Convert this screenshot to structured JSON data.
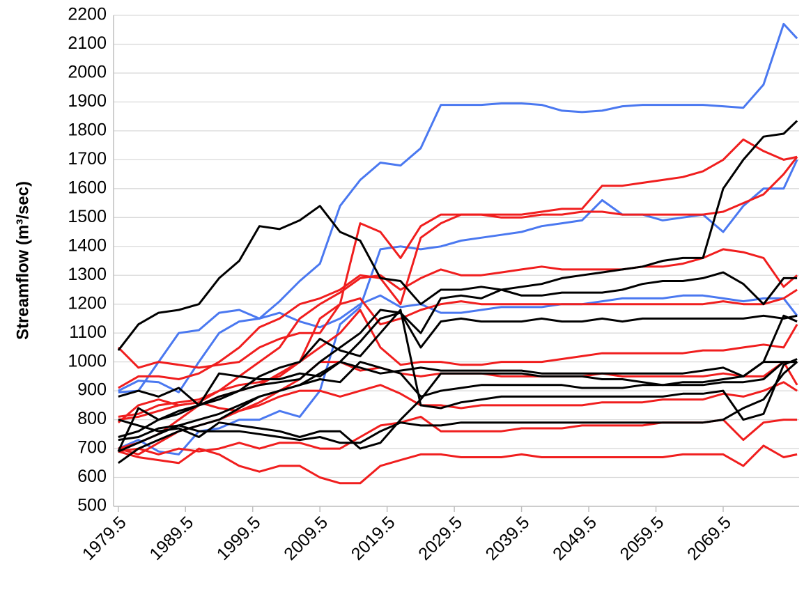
{
  "chart_data": {
    "type": "line",
    "y_label": "Streamflow (m³/sec)",
    "x": [
      1979.5,
      1982.5,
      1985.5,
      1988.5,
      1991.5,
      1994.5,
      1997.5,
      2000.5,
      2003.5,
      2006.5,
      2009.5,
      2012.5,
      2015.5,
      2018.5,
      2021.5,
      2024.5,
      2027.5,
      2030.5,
      2033.5,
      2036.5,
      2039.5,
      2042.5,
      2045.5,
      2048.5,
      2051.5,
      2054.5,
      2057.5,
      2060.5,
      2063.5,
      2066.5,
      2069.5,
      2072.5,
      2075.5,
      2078.5,
      2080.5
    ],
    "xlim": [
      1978.8,
      2080.8
    ],
    "xticks": [
      1979.5,
      1989.5,
      1999.5,
      2009.5,
      2019.5,
      2029.5,
      2039.5,
      2049.5,
      2059.5,
      2069.5
    ],
    "ylim": [
      500,
      2200
    ],
    "yticks": [
      500,
      600,
      700,
      800,
      900,
      1000,
      1100,
      1200,
      1300,
      1400,
      1500,
      1600,
      1700,
      1800,
      1900,
      2000,
      2100,
      2200
    ],
    "grid": true,
    "series": [
      {
        "color": "#4a78f0",
        "values": [
          900,
          935,
          930,
          895,
          1000,
          1100,
          1140,
          1150,
          1210,
          1280,
          1340,
          1540,
          1630,
          1690,
          1680,
          1740,
          1890,
          1890,
          1890,
          1895,
          1895,
          1890,
          1870,
          1865,
          1870,
          1885,
          1890,
          1890,
          1890,
          1890,
          1885,
          1880,
          1960,
          2170,
          2120
        ]
      },
      {
        "color": "#4a78f0",
        "values": [
          895,
          900,
          1000,
          1100,
          1110,
          1170,
          1180,
          1150,
          1170,
          1140,
          1120,
          1150,
          1200,
          1230,
          1190,
          1200,
          1170,
          1170,
          1180,
          1190,
          1190,
          1190,
          1200,
          1200,
          1210,
          1220,
          1220,
          1220,
          1230,
          1230,
          1220,
          1210,
          1220,
          1220,
          1160
        ]
      },
      {
        "color": "#4a78f0",
        "values": [
          700,
          730,
          690,
          680,
          760,
          770,
          800,
          800,
          830,
          810,
          900,
          1130,
          1190,
          1390,
          1400,
          1390,
          1400,
          1420,
          1430,
          1440,
          1450,
          1470,
          1480,
          1490,
          1560,
          1510,
          1510,
          1490,
          1500,
          1510,
          1450,
          1540,
          1600,
          1600,
          1700
        ]
      },
      {
        "color": "#f01e1e",
        "values": [
          1050,
          980,
          1000,
          990,
          980,
          990,
          1000,
          1050,
          1080,
          1100,
          1100,
          1200,
          1480,
          1450,
          1360,
          1470,
          1510,
          1510,
          1510,
          1510,
          1510,
          1520,
          1530,
          1530,
          1610,
          1610,
          1620,
          1630,
          1640,
          1660,
          1700,
          1770,
          1730,
          1700,
          1710
        ]
      },
      {
        "color": "#f01e1e",
        "values": [
          910,
          950,
          950,
          940,
          960,
          1000,
          1050,
          1120,
          1150,
          1200,
          1220,
          1250,
          1300,
          1290,
          1200,
          1430,
          1480,
          1510,
          1510,
          1500,
          1500,
          1510,
          1510,
          1520,
          1520,
          1510,
          1510,
          1510,
          1510,
          1510,
          1520,
          1550,
          1580,
          1650,
          1710
        ]
      },
      {
        "color": "#f01e1e",
        "values": [
          810,
          820,
          850,
          860,
          870,
          900,
          950,
          1000,
          1050,
          1150,
          1200,
          1240,
          1290,
          1300,
          1250,
          1290,
          1320,
          1300,
          1300,
          1310,
          1320,
          1330,
          1320,
          1320,
          1320,
          1320,
          1330,
          1330,
          1340,
          1360,
          1390,
          1380,
          1360,
          1260,
          1300
        ]
      },
      {
        "color": "#f01e1e",
        "values": [
          790,
          850,
          870,
          850,
          860,
          900,
          920,
          930,
          950,
          1000,
          1150,
          1200,
          1220,
          1130,
          1150,
          1180,
          1200,
          1210,
          1200,
          1200,
          1200,
          1200,
          1200,
          1200,
          1200,
          1200,
          1200,
          1200,
          1200,
          1200,
          1210,
          1200,
          1200,
          1220,
          1250
        ]
      },
      {
        "color": "#f01e1e",
        "values": [
          700,
          720,
          750,
          800,
          850,
          880,
          900,
          920,
          960,
          1000,
          1050,
          1100,
          1180,
          1050,
          990,
          1000,
          1000,
          990,
          990,
          1000,
          1000,
          1000,
          1010,
          1020,
          1030,
          1030,
          1030,
          1030,
          1030,
          1040,
          1040,
          1050,
          1060,
          1050,
          1130
        ]
      },
      {
        "color": "#f01e1e",
        "values": [
          700,
          680,
          720,
          760,
          780,
          800,
          830,
          860,
          900,
          940,
          1000,
          1000,
          970,
          980,
          960,
          950,
          960,
          960,
          960,
          950,
          950,
          950,
          950,
          950,
          960,
          950,
          950,
          950,
          950,
          950,
          960,
          950,
          950,
          1000,
          920
        ]
      },
      {
        "color": "#f01e1e",
        "values": [
          800,
          810,
          830,
          850,
          860,
          840,
          830,
          850,
          880,
          900,
          900,
          880,
          900,
          920,
          890,
          850,
          850,
          840,
          850,
          850,
          850,
          850,
          850,
          850,
          860,
          860,
          860,
          870,
          870,
          870,
          890,
          880,
          900,
          930,
          900
        ]
      },
      {
        "color": "#f01e1e",
        "values": [
          690,
          700,
          680,
          700,
          690,
          700,
          720,
          700,
          720,
          720,
          700,
          700,
          740,
          780,
          790,
          810,
          760,
          760,
          760,
          760,
          770,
          770,
          770,
          780,
          780,
          780,
          780,
          790,
          790,
          790,
          800,
          730,
          790,
          800,
          800
        ]
      },
      {
        "color": "#f01e1e",
        "values": [
          690,
          670,
          660,
          650,
          700,
          680,
          640,
          620,
          640,
          640,
          600,
          580,
          580,
          640,
          660,
          680,
          680,
          670,
          670,
          670,
          680,
          670,
          670,
          670,
          670,
          670,
          670,
          670,
          680,
          680,
          680,
          640,
          710,
          670,
          680
        ]
      },
      {
        "color": "#000000",
        "values": [
          1040,
          1130,
          1170,
          1180,
          1200,
          1290,
          1350,
          1470,
          1460,
          1490,
          1540,
          1450,
          1420,
          1290,
          1280,
          1200,
          1250,
          1250,
          1260,
          1250,
          1260,
          1270,
          1290,
          1300,
          1310,
          1320,
          1330,
          1350,
          1360,
          1360,
          1600,
          1700,
          1780,
          1790,
          1835
        ]
      },
      {
        "color": "#000000",
        "values": [
          740,
          760,
          800,
          830,
          850,
          880,
          900,
          920,
          930,
          940,
          1000,
          1050,
          1100,
          1180,
          1170,
          1100,
          1220,
          1230,
          1220,
          1250,
          1230,
          1230,
          1240,
          1240,
          1240,
          1250,
          1270,
          1280,
          1280,
          1290,
          1310,
          1270,
          1200,
          1290,
          1290
        ]
      },
      {
        "color": "#000000",
        "values": [
          690,
          720,
          750,
          780,
          800,
          820,
          850,
          880,
          900,
          920,
          960,
          1000,
          1070,
          1150,
          1170,
          1050,
          1140,
          1150,
          1140,
          1140,
          1140,
          1150,
          1140,
          1140,
          1150,
          1140,
          1150,
          1150,
          1150,
          1150,
          1150,
          1150,
          1160,
          1150,
          1160
        ]
      },
      {
        "color": "#000000",
        "values": [
          880,
          900,
          880,
          910,
          850,
          960,
          950,
          940,
          940,
          960,
          950,
          1000,
          980,
          960,
          970,
          980,
          970,
          970,
          970,
          970,
          970,
          960,
          960,
          960,
          960,
          960,
          960,
          960,
          960,
          970,
          980,
          950,
          1000,
          1000,
          1000
        ]
      },
      {
        "color": "#000000",
        "values": [
          650,
          700,
          730,
          760,
          780,
          800,
          840,
          880,
          900,
          920,
          940,
          930,
          1000,
          980,
          960,
          880,
          900,
          910,
          920,
          920,
          920,
          920,
          920,
          910,
          910,
          910,
          920,
          920,
          920,
          920,
          930,
          930,
          940,
          1000,
          1000
        ]
      },
      {
        "color": "#000000",
        "values": [
          730,
          740,
          770,
          780,
          760,
          760,
          760,
          750,
          740,
          730,
          740,
          720,
          720,
          760,
          790,
          780,
          780,
          790,
          790,
          790,
          790,
          790,
          790,
          790,
          790,
          790,
          790,
          790,
          790,
          790,
          800,
          840,
          870,
          960,
          1000
        ]
      },
      {
        "color": "#000000",
        "values": [
          690,
          840,
          800,
          820,
          850,
          870,
          900,
          950,
          980,
          1000,
          1080,
          1040,
          1020,
          1100,
          1180,
          850,
          840,
          860,
          870,
          880,
          880,
          880,
          880,
          880,
          880,
          880,
          880,
          880,
          890,
          890,
          900,
          800,
          820,
          990,
          1010
        ]
      },
      {
        "color": "#000000",
        "values": [
          800,
          780,
          760,
          770,
          740,
          790,
          780,
          770,
          760,
          740,
          760,
          760,
          700,
          720,
          800,
          870,
          960,
          960,
          960,
          960,
          960,
          950,
          950,
          950,
          940,
          940,
          930,
          920,
          930,
          930,
          940,
          950,
          1000,
          1160,
          1140
        ]
      }
    ]
  }
}
